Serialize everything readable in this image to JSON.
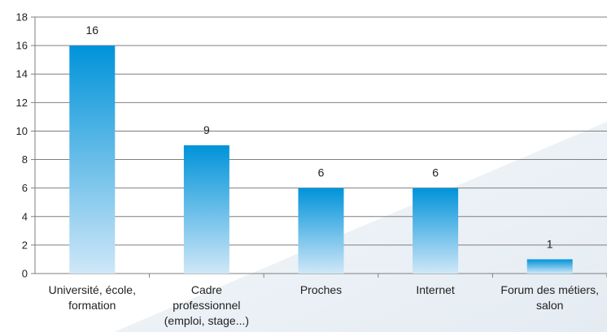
{
  "chart_data": {
    "type": "bar",
    "categories": [
      [
        "Université, école,",
        "formation"
      ],
      [
        "Cadre",
        "professionnel",
        "(emploi, stage...)"
      ],
      [
        "Proches"
      ],
      [
        "Internet"
      ],
      [
        "Forum des métiers,",
        "salon"
      ]
    ],
    "values": [
      16,
      9,
      6,
      6,
      1
    ],
    "data_labels": [
      "16",
      "9",
      "6",
      "6",
      "1"
    ],
    "ylim": [
      0,
      18
    ],
    "y_ticks": [
      0,
      2,
      4,
      6,
      8,
      10,
      12,
      14,
      16,
      18
    ],
    "grid": true,
    "colors": {
      "bar_top": "#0093d9",
      "bar_bottom": "#cfe7f8",
      "grid": "#7f7f7f",
      "axis": "#7f7f7f",
      "backdrop": "#e6eef5"
    }
  }
}
